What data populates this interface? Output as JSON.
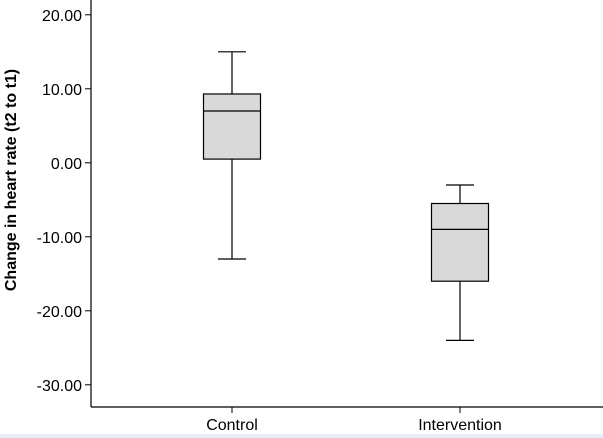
{
  "chart_data": {
    "type": "box",
    "title": "",
    "xlabel": "",
    "ylabel": "Change in heart rate (t2 to t1)",
    "ylim": [
      -33,
      22
    ],
    "yticks": [
      20,
      10,
      0,
      -10,
      -20,
      -30
    ],
    "ytick_labels": [
      "20.00",
      "10.00",
      "0.00",
      "-10.00",
      "-20.00",
      "-30.00"
    ],
    "categories": [
      "Control",
      "Intervention"
    ],
    "boxes": [
      {
        "name": "Control",
        "min": -13,
        "q1": 0.5,
        "median": 7,
        "q3": 9.3,
        "max": 15
      },
      {
        "name": "Intervention",
        "min": -24,
        "q1": -16,
        "median": -9,
        "q3": -5.5,
        "max": -3
      }
    ],
    "grid": false,
    "legend": "none",
    "colors": {
      "box_fill": "#d9d9d9",
      "stroke": "#000000",
      "background": "#ffffff"
    }
  }
}
